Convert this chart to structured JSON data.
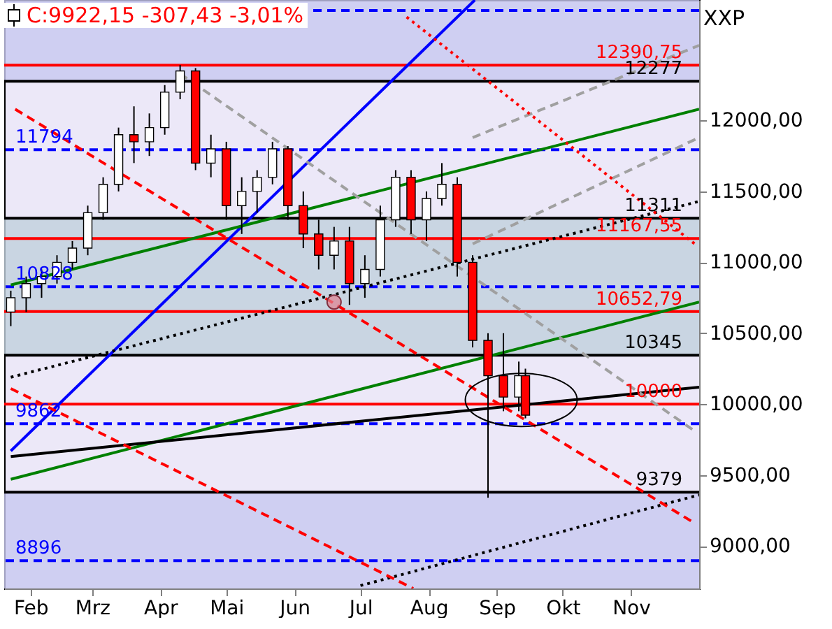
{
  "chart_data": {
    "type": "candlestick",
    "title": "C:9922,15 -307,43 -3,01%",
    "annotations": [
      "XXP"
    ],
    "xlim": [
      "--01-20",
      "--12-02"
    ],
    "xticks": [
      {
        "value": "--02-01",
        "label": "Feb"
      },
      {
        "value": "--03-01",
        "label": "Mrz"
      },
      {
        "value": "--04-01",
        "label": "Apr"
      },
      {
        "value": "--05-01",
        "label": "Mai"
      },
      {
        "value": "--06-01",
        "label": "Jun"
      },
      {
        "value": "--07-01",
        "label": "Jul"
      },
      {
        "value": "--08-01",
        "label": "Aug"
      },
      {
        "value": "--09-01",
        "label": "Sep"
      },
      {
        "value": "--10-01",
        "label": "Okt"
      },
      {
        "value": "--11-01",
        "label": "Nov"
      }
    ],
    "ylim": [
      8700,
      12850
    ],
    "yticks": [
      {
        "value": 9000,
        "label": "9000,00"
      },
      {
        "value": 9500,
        "label": "9500,00"
      },
      {
        "value": 10000,
        "label": "10000,00"
      },
      {
        "value": 10500,
        "label": "10500,00"
      },
      {
        "value": 11000,
        "label": "11000,00"
      },
      {
        "value": 11500,
        "label": "11500,00"
      },
      {
        "value": 12000,
        "label": "12000,00"
      }
    ],
    "series": [
      {
        "colors": [
          "#ffffff",
          "#ffffff",
          "#ffffff",
          "#ffffff",
          "#ffffff",
          "#ffffff",
          "#ffffff",
          "#ffffff",
          "#ff0000",
          "#ffffff",
          "#ffffff",
          "#ffffff",
          "#ff0000",
          "#ffffff",
          "#ff0000",
          "#ffffff",
          "#ffffff",
          "#ffffff",
          "#ff0000",
          "#ff0000",
          "#ff0000",
          "#ffffff",
          "#ff0000",
          "#ffffff",
          "#ffffff",
          "#ffffff",
          "#ff0000",
          "#ffffff",
          "#ffffff",
          "#ff0000",
          "#ff0000",
          "#ff0000",
          "#ff0000",
          "#ffffff",
          "#ff0000"
        ],
        "x": [
          "--01-23",
          "--01-30",
          "--02-06",
          "--02-13",
          "--02-20",
          "--02-27",
          "--03-06",
          "--03-13",
          "--03-20",
          "--03-27",
          "--04-03",
          "--04-10",
          "--04-17",
          "--04-24",
          "--05-01",
          "--05-08",
          "--05-15",
          "--05-22",
          "--05-29",
          "--06-05",
          "--06-12",
          "--06-19",
          "--06-26",
          "--07-03",
          "--07-10",
          "--07-17",
          "--07-24",
          "--07-31",
          "--08-07",
          "--08-14",
          "--08-21",
          "--08-28",
          "--09-04",
          "--09-11",
          "--09-14"
        ],
        "ohlc": [
          [
            10650,
            10800,
            10550,
            10750
          ],
          [
            10750,
            10900,
            10650,
            10850
          ],
          [
            10850,
            10950,
            10750,
            10900
          ],
          [
            10900,
            11050,
            10850,
            11000
          ],
          [
            11000,
            11150,
            10950,
            11100
          ],
          [
            11100,
            11400,
            11050,
            11350
          ],
          [
            11350,
            11600,
            11300,
            11550
          ],
          [
            11550,
            11950,
            11500,
            11900
          ],
          [
            11900,
            12100,
            11700,
            11850
          ],
          [
            11850,
            12050,
            11750,
            11950
          ],
          [
            11950,
            12250,
            11900,
            12200
          ],
          [
            12200,
            12391,
            12150,
            12350
          ],
          [
            12350,
            12370,
            11650,
            11700
          ],
          [
            11700,
            11900,
            11600,
            11800
          ],
          [
            11800,
            11850,
            11300,
            11400
          ],
          [
            11400,
            11600,
            11200,
            11500
          ],
          [
            11500,
            11650,
            11350,
            11600
          ],
          [
            11600,
            11850,
            11550,
            11800
          ],
          [
            11800,
            11820,
            11300,
            11400
          ],
          [
            11400,
            11500,
            11100,
            11200
          ],
          [
            11200,
            11300,
            10950,
            11050
          ],
          [
            11050,
            11250,
            10950,
            11150
          ],
          [
            11150,
            11250,
            10700,
            10850
          ],
          [
            10850,
            11050,
            10750,
            10950
          ],
          [
            10950,
            11400,
            10900,
            11300
          ],
          [
            11300,
            11650,
            11250,
            11600
          ],
          [
            11600,
            11650,
            11200,
            11300
          ],
          [
            11300,
            11500,
            11150,
            11450
          ],
          [
            11450,
            11700,
            11400,
            11550
          ],
          [
            11550,
            11600,
            10900,
            11000
          ],
          [
            11000,
            11050,
            10400,
            10450
          ],
          [
            10450,
            10500,
            9340,
            10200
          ],
          [
            10200,
            10500,
            9950,
            10050
          ],
          [
            10050,
            10300,
            9950,
            10200
          ],
          [
            10200,
            10250,
            9900,
            9922
          ]
        ]
      },
      {
        "type": "line",
        "color": "#0000ff",
        "line_style": "solid",
        "x": [
          "--01-23",
          "--08-22"
        ],
        "values": [
          9670,
          12850
        ]
      },
      {
        "type": "line",
        "color": "#008000",
        "line_style": "solid",
        "x": [
          "--01-23",
          "--12-02"
        ],
        "values": [
          10840,
          12080
        ]
      },
      {
        "type": "line",
        "color": "#008000",
        "line_style": "solid",
        "x": [
          "--01-23",
          "--12-02"
        ],
        "values": [
          9470,
          10720
        ]
      },
      {
        "type": "line",
        "color": "#000000",
        "line_style": "solid",
        "x": [
          "--01-23",
          "--12-02"
        ],
        "values": [
          9630,
          10120
        ]
      },
      {
        "type": "line",
        "color": "#000000",
        "line_style": "dotted",
        "x": [
          "--01-23",
          "--12-02"
        ],
        "values": [
          10190,
          11430
        ]
      },
      {
        "type": "line",
        "color": "#000000",
        "line_style": "dotted",
        "x": [
          "--07-01",
          "--12-02"
        ],
        "values": [
          8720,
          9360
        ]
      },
      {
        "type": "line",
        "color": "#a0a0a0",
        "line_style": "dashed",
        "x": [
          "--04-10",
          "--11-30"
        ],
        "values": [
          12330,
          9810
        ]
      },
      {
        "type": "line",
        "color": "#a0a0a0",
        "line_style": "dashed",
        "x": [
          "--08-21",
          "--12-02"
        ],
        "values": [
          11880,
          12530
        ]
      },
      {
        "type": "line",
        "color": "#a0a0a0",
        "line_style": "dashed",
        "x": [
          "--08-21",
          "--12-02"
        ],
        "values": [
          11130,
          11880
        ]
      },
      {
        "type": "line",
        "color": "#ff0000",
        "line_style": "dashed",
        "x": [
          "--01-23",
          "--07-25"
        ],
        "values": [
          10110,
          8700
        ]
      },
      {
        "type": "line",
        "color": "#ff0000",
        "line_style": "dashed",
        "x": [
          "--01-25",
          "--11-30"
        ],
        "values": [
          12080,
          9160
        ]
      },
      {
        "type": "line",
        "color": "#ff0000",
        "line_style": "dotted",
        "x": [
          "--07-22",
          "--11-30"
        ],
        "values": [
          12730,
          11130
        ]
      }
    ],
    "ref_lines": [
      {
        "axis": "y",
        "value": 12776,
        "label": null,
        "color": "#0000ff",
        "line_style": "dashed"
      },
      {
        "axis": "y",
        "value": 12390.75,
        "label": "12390,75",
        "color": "#ff0000",
        "line_style": "solid"
      },
      {
        "axis": "y",
        "value": 12277,
        "label": "12277",
        "color": "#000000",
        "line_style": "solid"
      },
      {
        "axis": "y",
        "value": 11794,
        "label": "11794",
        "color": "#0000ff",
        "line_style": "dashed"
      },
      {
        "axis": "y",
        "value": 11311,
        "label": "11311",
        "color": "#000000",
        "line_style": "solid"
      },
      {
        "axis": "y",
        "value": 11167.55,
        "label": "11167,55",
        "color": "#ff0000",
        "line_style": "solid"
      },
      {
        "axis": "y",
        "value": 10828,
        "label": "10828",
        "color": "#0000ff",
        "line_style": "dashed"
      },
      {
        "axis": "y",
        "value": 10652.79,
        "label": "10652,79",
        "color": "#ff0000",
        "line_style": "solid"
      },
      {
        "axis": "y",
        "value": 10345,
        "label": "10345",
        "color": "#000000",
        "line_style": "solid"
      },
      {
        "axis": "y",
        "value": 10000,
        "label": "10000",
        "color": "#ff0000",
        "line_style": "solid"
      },
      {
        "axis": "y",
        "value": 9862,
        "label": "9862",
        "color": "#0000ff",
        "line_style": "dashed"
      },
      {
        "axis": "y",
        "value": 9379,
        "label": "9379",
        "color": "#000000",
        "line_style": "solid"
      },
      {
        "axis": "y",
        "value": 8896,
        "label": "8896",
        "color": "#0000ff",
        "line_style": "dashed"
      }
    ],
    "bands": [
      {
        "axis": "y",
        "from": 12277,
        "to": 12850,
        "color": "#c8c8f0"
      },
      {
        "axis": "y",
        "from": 10345,
        "to": 11311,
        "color": "#c0d0dc"
      },
      {
        "axis": "y",
        "from": 8700,
        "to": 9379,
        "color": "#c8c8f0"
      }
    ],
    "tick_labels": true
  }
}
